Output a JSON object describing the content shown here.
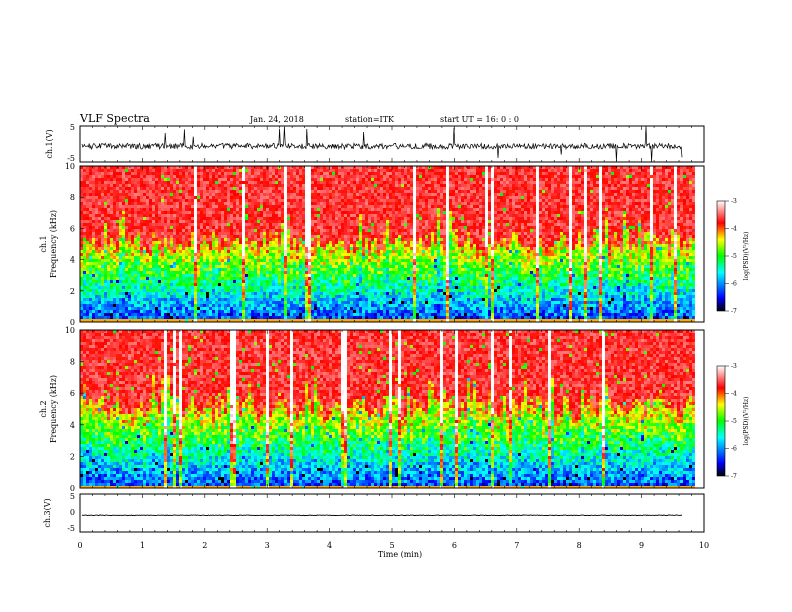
{
  "header": {
    "title": "VLF Spectra",
    "date": "Jan. 24, 2018",
    "station": "station=ITK",
    "start": "start UT =   16: 0 : 0"
  },
  "colors": {
    "waveform": "#000000",
    "colormap": [
      "#000000",
      "#0000ff",
      "#00ffff",
      "#00ff00",
      "#ffff00",
      "#ff0000",
      "#ffffff"
    ]
  },
  "colorbar": {
    "label": "log(PSD)(V²/Hz)",
    "ticks": [
      "-3",
      "-4",
      "-5",
      "-6",
      "-7"
    ]
  },
  "chart_data": [
    {
      "type": "line",
      "ylabel": "ch.1(V)",
      "ylim": [
        -5,
        5
      ],
      "yticks": [
        "5",
        "-5"
      ],
      "xlim": [
        0,
        10
      ],
      "description_values": "noisy waveform around -0.5 V with spikes to +/-5 V"
    },
    {
      "type": "heatmap",
      "ylabel": "Frequency (kHz)",
      "channel": "ch.1",
      "ylim": [
        0,
        10
      ],
      "yticks": [
        "0",
        "2",
        "4",
        "6",
        "8",
        "10"
      ],
      "xlim": [
        0,
        9.85
      ],
      "zlim": [
        -7,
        -3
      ]
    },
    {
      "type": "heatmap",
      "ylabel": "Frequency (kHz)",
      "channel": "ch.2",
      "ylim": [
        0,
        10
      ],
      "yticks": [
        "0",
        "2",
        "4",
        "6",
        "8",
        "10"
      ],
      "xlim": [
        0,
        9.85
      ],
      "zlim": [
        -7,
        -3
      ]
    },
    {
      "type": "line",
      "ylabel": "ch.3(V)",
      "ylim": [
        -5,
        5
      ],
      "yticks": [
        "5",
        "0",
        "-5"
      ],
      "xlim": [
        0,
        10
      ],
      "xlabel": "Time (min)",
      "xticks": [
        "0",
        "1",
        "2",
        "3",
        "4",
        "5",
        "6",
        "7",
        "8",
        "9",
        "10"
      ]
    }
  ]
}
